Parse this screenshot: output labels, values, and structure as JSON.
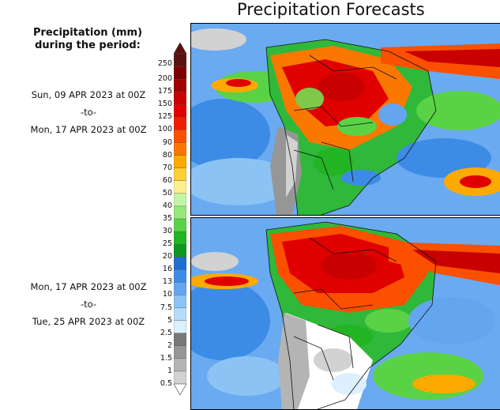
{
  "title": "Precipitation Forecasts",
  "legend": {
    "title_line1": "Precipitation (mm)",
    "title_line2": "during the period:",
    "levels": [
      {
        "label": "250",
        "color": "#5c1010"
      },
      {
        "label": "200",
        "color": "#7d0000"
      },
      {
        "label": "175",
        "color": "#a00000"
      },
      {
        "label": "150",
        "color": "#c80000"
      },
      {
        "label": "125",
        "color": "#e10000"
      },
      {
        "label": "100",
        "color": "#f01e00"
      },
      {
        "label": "90",
        "color": "#fa5000"
      },
      {
        "label": "80",
        "color": "#fa7800"
      },
      {
        "label": "70",
        "color": "#fcaa00"
      },
      {
        "label": "60",
        "color": "#fdd035"
      },
      {
        "label": "50",
        "color": "#fdf08c"
      },
      {
        "label": "40",
        "color": "#c4f5a6"
      },
      {
        "label": "35",
        "color": "#96e678"
      },
      {
        "label": "30",
        "color": "#5ad246"
      },
      {
        "label": "25",
        "color": "#23b423"
      },
      {
        "label": "20",
        "color": "#0f961e"
      },
      {
        "label": "16",
        "color": "#1e6ed2"
      },
      {
        "label": "13",
        "color": "#3c8ce6"
      },
      {
        "label": "10",
        "color": "#64a5f0"
      },
      {
        "label": "7.5",
        "color": "#8cc3f5"
      },
      {
        "label": "5",
        "color": "#b4dcfa"
      },
      {
        "label": "2.5",
        "color": "#dcf0fd"
      },
      {
        "label": "2",
        "color": "#787878"
      },
      {
        "label": "1.5",
        "color": "#969696"
      },
      {
        "label": "1",
        "color": "#b4b4b4"
      },
      {
        "label": "0.5",
        "color": "#d2d2d2"
      }
    ]
  },
  "periods": [
    {
      "start": "Sun, 09 APR 2023 at 00Z",
      "sep": "-to-",
      "end": "Mon, 17 APR 2023 at 00Z"
    },
    {
      "start": "Mon, 17 APR 2023 at 00Z",
      "sep": "-to-",
      "end": "Tue, 25 APR 2023 at 00Z"
    }
  ]
}
